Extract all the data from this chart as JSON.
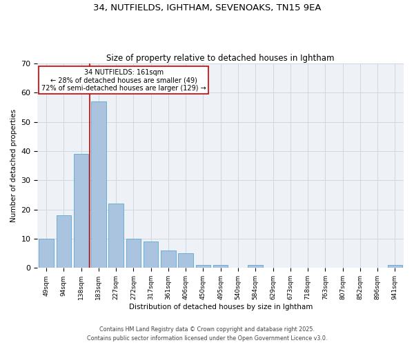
{
  "title1": "34, NUTFIELDS, IGHTHAM, SEVENOAKS, TN15 9EA",
  "title2": "Size of property relative to detached houses in Ightham",
  "xlabel": "Distribution of detached houses by size in Ightham",
  "ylabel": "Number of detached properties",
  "categories": [
    "49sqm",
    "94sqm",
    "138sqm",
    "183sqm",
    "227sqm",
    "272sqm",
    "317sqm",
    "361sqm",
    "406sqm",
    "450sqm",
    "495sqm",
    "540sqm",
    "584sqm",
    "629sqm",
    "673sqm",
    "718sqm",
    "763sqm",
    "807sqm",
    "852sqm",
    "896sqm",
    "941sqm"
  ],
  "values": [
    10,
    18,
    39,
    57,
    22,
    10,
    9,
    6,
    5,
    1,
    1,
    0,
    1,
    0,
    0,
    0,
    0,
    0,
    0,
    0,
    1
  ],
  "bar_color": "#aac4df",
  "bar_edge_color": "#6aadd5",
  "annotation_text_line1": "34 NUTFIELDS: 161sqm",
  "annotation_text_line2": "← 28% of detached houses are smaller (49)",
  "annotation_text_line3": "72% of semi-detached houses are larger (129) →",
  "red_line_color": "#cc0000",
  "annotation_box_edge_color": "#cc0000",
  "ylim": [
    0,
    70
  ],
  "yticks": [
    0,
    10,
    20,
    30,
    40,
    50,
    60,
    70
  ],
  "footer_line1": "Contains HM Land Registry data © Crown copyright and database right 2025.",
  "footer_line2": "Contains public sector information licensed under the Open Government Licence v3.0.",
  "bg_color": "#eef2f7",
  "grid_color": "#cdd8e3"
}
